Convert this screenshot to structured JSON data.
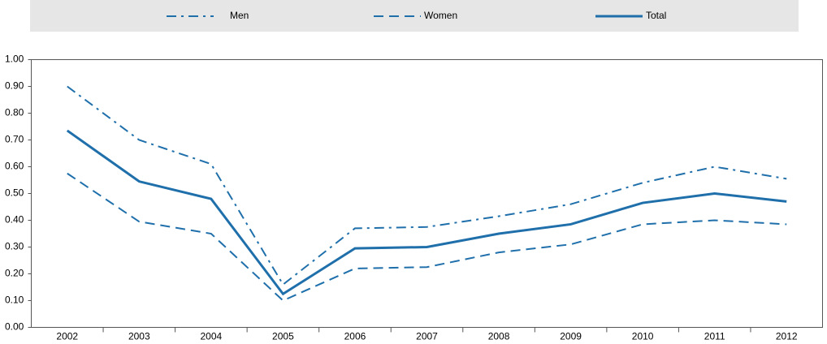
{
  "chart_data": {
    "type": "line",
    "categories": [
      "2002",
      "2003",
      "2004",
      "2005",
      "2006",
      "2007",
      "2008",
      "2009",
      "2010",
      "2011",
      "2012"
    ],
    "series": [
      {
        "name": "Men",
        "color": "#1f6fab",
        "dash": "dashdot",
        "values": [
          0.9,
          0.7,
          0.61,
          0.16,
          0.37,
          0.375,
          0.415,
          0.46,
          0.54,
          0.6,
          0.555
        ]
      },
      {
        "name": "Women",
        "color": "#1f6fab",
        "dash": "dashed",
        "values": [
          0.575,
          0.395,
          0.35,
          0.1,
          0.22,
          0.225,
          0.28,
          0.31,
          0.385,
          0.4,
          0.385
        ]
      },
      {
        "name": "Total",
        "color": "#1f6fab",
        "dash": "solid",
        "values": [
          0.735,
          0.545,
          0.48,
          0.125,
          0.295,
          0.3,
          0.35,
          0.385,
          0.465,
          0.5,
          0.47
        ]
      }
    ],
    "ylim": [
      0,
      1
    ],
    "yticks": [
      {
        "value": 0,
        "label": "0.00"
      },
      {
        "value": 0.1,
        "label": "0.10"
      },
      {
        "value": 0.2,
        "label": "0.20"
      },
      {
        "value": 0.3,
        "label": "0.30"
      },
      {
        "value": 0.4,
        "label": "0.40"
      },
      {
        "value": 0.5,
        "label": "0.50"
      },
      {
        "value": 0.6,
        "label": "0.60"
      },
      {
        "value": 0.7,
        "label": "0.70"
      },
      {
        "value": 0.8,
        "label": "0.80"
      },
      {
        "value": 0.9,
        "label": "0.90"
      },
      {
        "value": 1,
        "label": "1.00"
      }
    ],
    "grid": false,
    "legend": "top"
  }
}
